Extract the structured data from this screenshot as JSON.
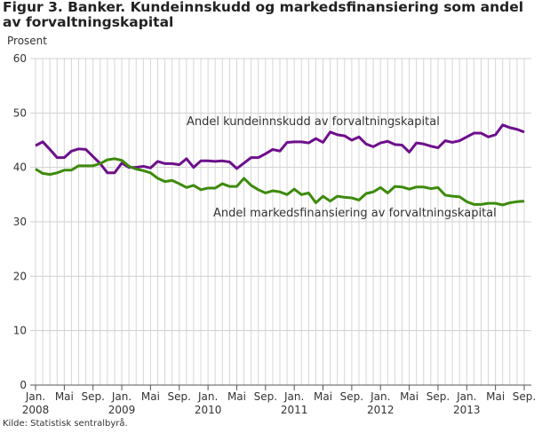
{
  "chart_data": {
    "type": "line",
    "title": "Figur 3. Banker. Kundeinnskudd og markedsfinansiering som andel av forvaltningskapital",
    "ylabel": "Prosent",
    "xlabel": "",
    "ylim": [
      0,
      60
    ],
    "yticks": [
      0,
      10,
      20,
      30,
      40,
      50,
      60
    ],
    "grid": true,
    "start": {
      "year": 2008,
      "month": 1
    },
    "xticks": [
      {
        "m": 0,
        "label": "Jan.",
        "year": "2008"
      },
      {
        "m": 4,
        "label": "Mai"
      },
      {
        "m": 8,
        "label": "Sep."
      },
      {
        "m": 12,
        "label": "Jan.",
        "year": "2009"
      },
      {
        "m": 16,
        "label": "Mai"
      },
      {
        "m": 20,
        "label": "Sep."
      },
      {
        "m": 24,
        "label": "Jan.",
        "year": "2010"
      },
      {
        "m": 28,
        "label": "Mai"
      },
      {
        "m": 32,
        "label": "Sep."
      },
      {
        "m": 36,
        "label": "Jan.",
        "year": "2011"
      },
      {
        "m": 40,
        "label": "Mai"
      },
      {
        "m": 44,
        "label": "Sep."
      },
      {
        "m": 48,
        "label": "Jan.",
        "year": "2012"
      },
      {
        "m": 52,
        "label": "Mai"
      },
      {
        "m": 56,
        "label": "Sep."
      },
      {
        "m": 60,
        "label": "Jan.",
        "year": "2013"
      },
      {
        "m": 64,
        "label": "Mai"
      },
      {
        "m": 68,
        "label": "Sep."
      }
    ],
    "series": [
      {
        "name": "Andel kundeinnskudd av forvaltningskapital",
        "color": "#6e0f8c",
        "values": [
          44.0,
          44.7,
          43.3,
          41.8,
          41.8,
          43.0,
          43.4,
          43.3,
          42.0,
          40.7,
          39.0,
          39.0,
          40.8,
          40.0,
          40.0,
          40.2,
          39.9,
          41.1,
          40.7,
          40.7,
          40.5,
          41.6,
          40.0,
          41.2,
          41.2,
          41.1,
          41.2,
          41.0,
          39.8,
          40.8,
          41.8,
          41.8,
          42.5,
          43.3,
          43.0,
          44.6,
          44.7,
          44.7,
          44.5,
          45.3,
          44.6,
          46.5,
          46.0,
          45.8,
          45.0,
          45.6,
          44.3,
          43.8,
          44.5,
          44.8,
          44.2,
          44.1,
          42.8,
          44.5,
          44.3,
          43.9,
          43.6,
          44.9,
          44.6,
          44.9,
          45.6,
          46.3,
          46.3,
          45.6,
          46.0,
          47.8,
          47.3,
          47.0,
          46.5
        ]
      },
      {
        "name": "Andel markedsfinansiering av forvaltningskapital",
        "color": "#3d8a0c",
        "values": [
          39.7,
          38.9,
          38.7,
          39.0,
          39.5,
          39.5,
          40.3,
          40.3,
          40.3,
          40.7,
          41.4,
          41.6,
          41.3,
          40.2,
          39.7,
          39.4,
          39.0,
          38.0,
          37.4,
          37.6,
          37.0,
          36.3,
          36.7,
          35.9,
          36.2,
          36.2,
          37.0,
          36.5,
          36.5,
          38.0,
          36.7,
          35.9,
          35.3,
          35.7,
          35.5,
          35.0,
          36.0,
          35.0,
          35.3,
          33.5,
          34.7,
          33.8,
          34.7,
          34.5,
          34.4,
          34.0,
          35.2,
          35.5,
          36.3,
          35.3,
          36.5,
          36.4,
          36.0,
          36.4,
          36.4,
          36.1,
          36.3,
          34.9,
          34.7,
          34.6,
          33.7,
          33.2,
          33.2,
          33.4,
          33.4,
          33.1,
          33.5,
          33.7,
          33.8
        ]
      }
    ],
    "source": "Kilde: Statistisk sentralbyrå."
  }
}
